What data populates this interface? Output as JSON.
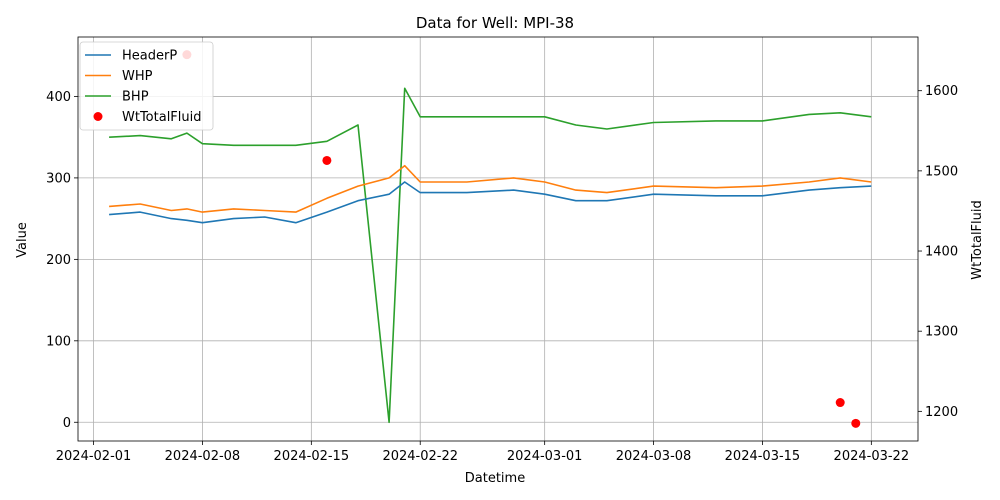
{
  "chart_data": {
    "type": "line",
    "title": "Data for Well: MPI-38",
    "xlabel": "Datetime",
    "ylabel_left": "Value",
    "ylabel_right": "WtTotalFluid",
    "x_ticks": [
      "2024-02-01",
      "2024-02-08",
      "2024-02-15",
      "2024-02-22",
      "2024-03-01",
      "2024-03-08",
      "2024-03-15",
      "2024-03-22"
    ],
    "y_left_ticks": [
      "0",
      "100",
      "200",
      "300",
      "400"
    ],
    "y_right_ticks": [
      "1200",
      "1300",
      "1400",
      "1500",
      "1600"
    ],
    "y_left_range": [
      -23,
      473
    ],
    "y_right_range": [
      1163,
      1667
    ],
    "x_range": [
      "2024-01-31",
      "2024-03-25"
    ],
    "grid": true,
    "legend_position": "top-left",
    "series": [
      {
        "name": "HeaderP",
        "axis": "left",
        "style": "line",
        "color": "#1f77b4",
        "x": [
          "2024-02-02",
          "2024-02-04",
          "2024-02-06",
          "2024-02-07",
          "2024-02-08",
          "2024-02-10",
          "2024-02-12",
          "2024-02-14",
          "2024-02-16",
          "2024-02-18",
          "2024-02-20",
          "2024-02-21",
          "2024-02-22",
          "2024-02-25",
          "2024-02-28",
          "2024-03-01",
          "2024-03-03",
          "2024-03-05",
          "2024-03-08",
          "2024-03-12",
          "2024-03-15",
          "2024-03-18",
          "2024-03-20",
          "2024-03-22"
        ],
        "y": [
          255,
          258,
          250,
          248,
          245,
          250,
          252,
          245,
          258,
          272,
          280,
          295,
          282,
          282,
          285,
          280,
          272,
          272,
          280,
          278,
          278,
          285,
          288,
          290
        ]
      },
      {
        "name": "WHP",
        "axis": "left",
        "style": "line",
        "color": "#ff7f0e",
        "x": [
          "2024-02-02",
          "2024-02-04",
          "2024-02-06",
          "2024-02-07",
          "2024-02-08",
          "2024-02-10",
          "2024-02-12",
          "2024-02-14",
          "2024-02-16",
          "2024-02-18",
          "2024-02-20",
          "2024-02-21",
          "2024-02-22",
          "2024-02-25",
          "2024-02-28",
          "2024-03-01",
          "2024-03-03",
          "2024-03-05",
          "2024-03-08",
          "2024-03-12",
          "2024-03-15",
          "2024-03-18",
          "2024-03-20",
          "2024-03-22"
        ],
        "y": [
          265,
          268,
          260,
          262,
          258,
          262,
          260,
          258,
          275,
          290,
          300,
          315,
          295,
          295,
          300,
          295,
          285,
          282,
          290,
          288,
          290,
          295,
          300,
          295
        ]
      },
      {
        "name": "BHP",
        "axis": "left",
        "style": "line",
        "color": "#2ca02c",
        "x": [
          "2024-02-02",
          "2024-02-04",
          "2024-02-06",
          "2024-02-07",
          "2024-02-08",
          "2024-02-10",
          "2024-02-12",
          "2024-02-14",
          "2024-02-16",
          "2024-02-18",
          "2024-02-20",
          "2024-02-21",
          "2024-02-22",
          "2024-02-25",
          "2024-02-28",
          "2024-03-01",
          "2024-03-03",
          "2024-03-05",
          "2024-03-08",
          "2024-03-12",
          "2024-03-15",
          "2024-03-18",
          "2024-03-20",
          "2024-03-22"
        ],
        "y": [
          350,
          352,
          348,
          355,
          342,
          340,
          340,
          340,
          345,
          365,
          0,
          410,
          375,
          375,
          375,
          375,
          365,
          360,
          368,
          370,
          370,
          378,
          380,
          375
        ]
      },
      {
        "name": "WtTotalFluid",
        "axis": "right",
        "style": "scatter",
        "color": "#ff0000",
        "x": [
          "2024-02-07",
          "2024-02-16",
          "2024-03-20",
          "2024-03-21"
        ],
        "y": [
          1645,
          1513,
          1211,
          1185
        ]
      }
    ]
  }
}
